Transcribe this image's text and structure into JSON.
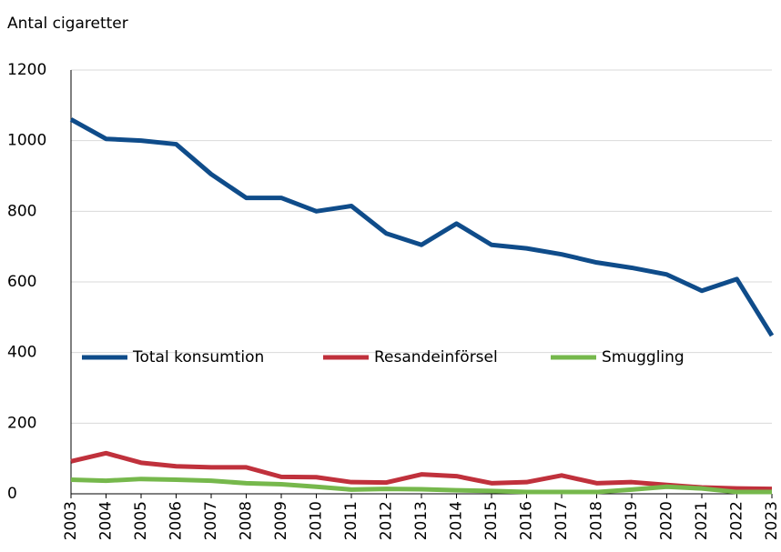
{
  "chart_data": {
    "type": "line",
    "y_label": "Antal cigaretter",
    "x": [
      "2003",
      "2004",
      "2005",
      "2006",
      "2007",
      "2008",
      "2009",
      "2010",
      "2011",
      "2012",
      "2013",
      "2014",
      "2015",
      "2016",
      "2017",
      "2018",
      "2019",
      "2020",
      "2021",
      "2022",
      "2023"
    ],
    "series": [
      {
        "name": "Total konsumtion",
        "color": "#0f4c8a",
        "values": [
          1060,
          1005,
          1000,
          990,
          905,
          838,
          838,
          800,
          815,
          737,
          705,
          765,
          705,
          695,
          678,
          655,
          640,
          621,
          575,
          608,
          448
        ]
      },
      {
        "name": "Resandeinförsel",
        "color": "#c0313c",
        "values": [
          92,
          115,
          88,
          78,
          75,
          75,
          48,
          47,
          33,
          32,
          55,
          50,
          30,
          33,
          52,
          30,
          33,
          25,
          18,
          15,
          14
        ]
      },
      {
        "name": "Smuggling",
        "color": "#76b84c",
        "values": [
          40,
          37,
          42,
          40,
          37,
          30,
          27,
          20,
          12,
          14,
          13,
          10,
          8,
          5,
          5,
          5,
          12,
          20,
          15,
          5,
          5
        ]
      }
    ],
    "ylim": [
      0,
      1200
    ],
    "yticks": [
      0,
      200,
      400,
      600,
      800,
      1000,
      1200
    ],
    "grid": true,
    "legend": "center"
  }
}
